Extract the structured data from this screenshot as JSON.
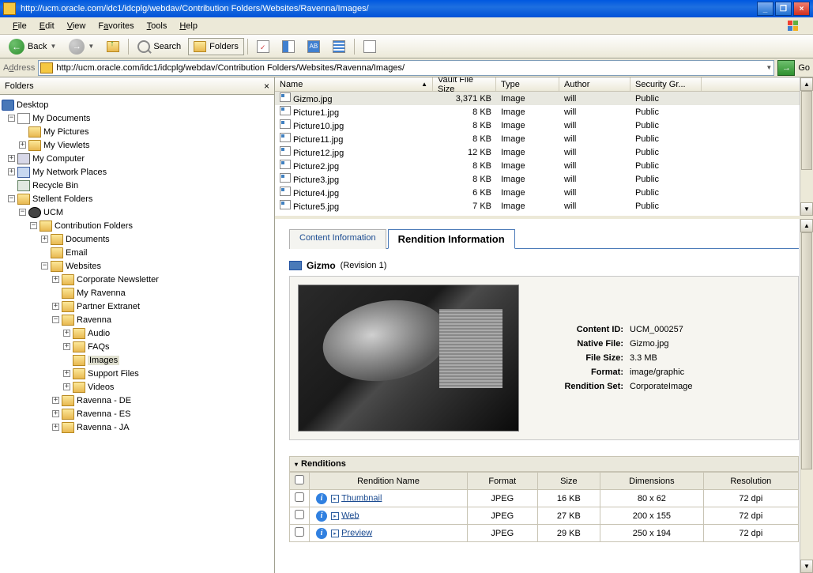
{
  "window": {
    "title": "http://ucm.oracle.com/idc1/idcplg/webdav/Contribution Folders/Websites/Ravenna/Images/"
  },
  "menu": {
    "file": "File",
    "edit": "Edit",
    "view": "View",
    "favorites": "Favorites",
    "tools": "Tools",
    "help": "Help"
  },
  "toolbar": {
    "back": "Back",
    "search": "Search",
    "folders": "Folders"
  },
  "address": {
    "label": "Address",
    "value": "http://ucm.oracle.com/idc1/idcplg/webdav/Contribution Folders/Websites/Ravenna/Images/",
    "go": "Go"
  },
  "sidebar": {
    "title": "Folders"
  },
  "tree": {
    "desktop": "Desktop",
    "mydocs": "My Documents",
    "mypics": "My Pictures",
    "myview": "My Viewlets",
    "mycomp": "My Computer",
    "netpl": "My Network Places",
    "recycle": "Recycle Bin",
    "stellent": "Stellent Folders",
    "ucm": "UCM",
    "contrib": "Contribution Folders",
    "documents": "Documents",
    "email": "Email",
    "websites": "Websites",
    "corpnews": "Corporate Newsletter",
    "myrav": "My Ravenna",
    "partner": "Partner Extranet",
    "ravenna": "Ravenna",
    "audio": "Audio",
    "faqs": "FAQs",
    "images": "Images",
    "support": "Support Files",
    "videos": "Videos",
    "ravde": "Ravenna - DE",
    "raves": "Ravenna - ES",
    "ravja": "Ravenna - JA"
  },
  "filecols": {
    "name": "Name",
    "vsize": "Vault File Size",
    "type": "Type",
    "author": "Author",
    "secgr": "Security Gr..."
  },
  "files": [
    {
      "name": "Gizmo.jpg",
      "size": "3,371 KB",
      "type": "Image",
      "author": "will",
      "sec": "Public"
    },
    {
      "name": "Picture1.jpg",
      "size": "8 KB",
      "type": "Image",
      "author": "will",
      "sec": "Public"
    },
    {
      "name": "Picture10.jpg",
      "size": "8 KB",
      "type": "Image",
      "author": "will",
      "sec": "Public"
    },
    {
      "name": "Picture11.jpg",
      "size": "8 KB",
      "type": "Image",
      "author": "will",
      "sec": "Public"
    },
    {
      "name": "Picture12.jpg",
      "size": "12 KB",
      "type": "Image",
      "author": "will",
      "sec": "Public"
    },
    {
      "name": "Picture2.jpg",
      "size": "8 KB",
      "type": "Image",
      "author": "will",
      "sec": "Public"
    },
    {
      "name": "Picture3.jpg",
      "size": "8 KB",
      "type": "Image",
      "author": "will",
      "sec": "Public"
    },
    {
      "name": "Picture4.jpg",
      "size": "6 KB",
      "type": "Image",
      "author": "will",
      "sec": "Public"
    },
    {
      "name": "Picture5.jpg",
      "size": "7 KB",
      "type": "Image",
      "author": "will",
      "sec": "Public"
    }
  ],
  "tabs": {
    "content": "Content Information",
    "rendition": "Rendition Information"
  },
  "item": {
    "name": "Gizmo",
    "rev": "(Revision 1)"
  },
  "meta": {
    "contentid_k": "Content ID:",
    "contentid_v": "UCM_000257",
    "native_k": "Native File:",
    "native_v": "Gizmo.jpg",
    "size_k": "File Size:",
    "size_v": "3.3 MB",
    "format_k": "Format:",
    "format_v": "image/graphic",
    "rset_k": "Rendition Set:",
    "rset_v": "CorporateImage"
  },
  "rend": {
    "header": "Renditions",
    "cols": {
      "name": "Rendition Name",
      "format": "Format",
      "size": "Size",
      "dim": "Dimensions",
      "res": "Resolution"
    },
    "rows": [
      {
        "name": "Thumbnail",
        "format": "JPEG",
        "size": "16 KB",
        "dim": "80 x 62",
        "res": "72 dpi"
      },
      {
        "name": "Web",
        "format": "JPEG",
        "size": "27 KB",
        "dim": "200 x 155",
        "res": "72 dpi"
      },
      {
        "name": "Preview",
        "format": "JPEG",
        "size": "29 KB",
        "dim": "250 x 194",
        "res": "72 dpi"
      }
    ]
  }
}
